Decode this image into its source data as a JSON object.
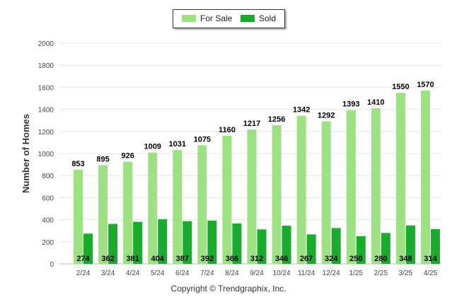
{
  "colors": {
    "for_sale": "#9de183",
    "sold": "#1aaa2d",
    "grid": "#e5e5e5",
    "axis": "#bbbbbb"
  },
  "legend": {
    "items": [
      "For Sale",
      "Sold"
    ]
  },
  "footer": {
    "copyright": "Copyright © Trendgraphix, Inc."
  },
  "chart_data": {
    "type": "bar",
    "categories": [
      "2/24",
      "3/24",
      "4/24",
      "5/24",
      "6/24",
      "7/24",
      "8/24",
      "9/24",
      "10/24",
      "11/24",
      "12/24",
      "1/25",
      "2/25",
      "3/25",
      "4/25"
    ],
    "series": [
      {
        "name": "For Sale",
        "values": [
          853,
          895,
          926,
          1009,
          1031,
          1075,
          1160,
          1217,
          1256,
          1342,
          1292,
          1393,
          1410,
          1550,
          1570
        ]
      },
      {
        "name": "Sold",
        "values": [
          274,
          362,
          381,
          404,
          387,
          392,
          366,
          312,
          346,
          267,
          324,
          250,
          280,
          348,
          314
        ]
      }
    ],
    "ylabel": "Number of Homes",
    "ylim": [
      0,
      2000
    ],
    "yticks": [
      0,
      200,
      400,
      600,
      800,
      1000,
      1200,
      1400,
      1600,
      1800,
      2000
    ],
    "grid": true,
    "legend_position": "top-center"
  }
}
